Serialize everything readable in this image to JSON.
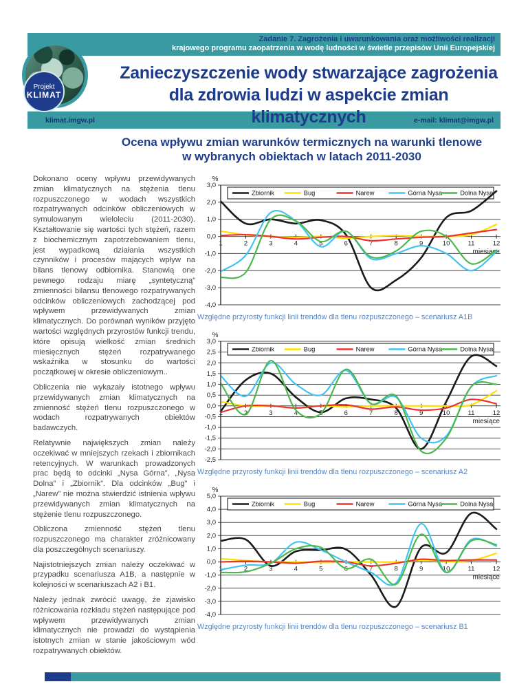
{
  "page": {
    "header": {
      "task_line1": "Zadanie 7. Zagrożenia i uwarunkowania oraz możliwości realizacji",
      "task_line2": "krajowego programu zaopatrzenia w wodę ludności w świetle przepisów Unii Europejskiej",
      "title_line1": "Zanieczyszczenie wody stwarzające zagrożenia",
      "title_line2": "dla zdrowia ludzi w aspekcie zmian klimatycznych",
      "website": "klimat.imgw.pl",
      "email": "e-mail: klimat@imgw.pl",
      "logo_line1": "Projekt",
      "logo_line2": "KLIMAT"
    },
    "section_title_line1": "Ocena wpływu zmian warunków termicznych na warunki tlenowe",
    "section_title_line2": "w wybranych obiektach w latach 2011-2030",
    "article": {
      "paragraphs": [
        "Dokonano oceny wpływu przewidywanych zmian klimatycznych na stężenia tlenu rozpuszczonego w wodach wszystkich rozpatrywanych odcinków obliczeniowych w symulowanym wieloleciu (2011-2030). Kształtowanie się wartości tych stężeń, razem z biochemicznym zapotrzebowaniem tlenu, jest wypadkową działania wszystkich czynników i procesów mających wpływ na bilans tlenowy odbiornika. Stanowią one pewnego rodzaju miarę „syntetyczną” zmienności bilansu tlenowego rozpatrywanych odcinków obliczeniowych zachodzącej pod wpływem przewidywanych zmian klimatycznych. Do porównań wyników przyjęto wartości względnych przyrostów funkcji trendu, które opisują wielkość zmian średnich miesięcznych stężeń rozpatrywanego wskaźnika w stosunku do wartości początkowej w okresie obliczeniowym..",
        "Obliczenia nie wykazały istotnego wpływu przewidywanych zmian klimatycznych na zmienność stężeń tlenu rozpuszczonego w wodach rozpatrywanych obiektów badawczych.",
        "Relatywnie największych zmian należy oczekiwać w mniejszych rzekach i zbiornikach retencyjnych. W warunkach prowadzonych prac będą to odcinki „Nysa Górna”, „Nysa Dolna” i „Zbiornik”. Dla odcinków „Bug” i „Narew” nie można stwierdzić istnienia wpływu przewidywanych zmian klimatycznych na stężenie tlenu rozpuszczonego.",
        "Obliczona zmienność stężeń tlenu rozpuszczonego ma charakter zróżnicowany dla poszczególnych scenariuszy.",
        "Najistotniejszych zmian należy oczekiwać w przypadku scenariusza A1B, a następnie w kolejności w scenariuszach A2 i B1.",
        "Należy jednak zwrócić uwagę, że zjawisko różnicowania rozkładu stężeń następujące pod wpływem przewidywanych zmian klimatycznych nie prowadzi do wystąpienia istotnych zmian w stanie jakościowym wód rozpatrywanych obiektów."
      ]
    },
    "colors": {
      "teal": "#3a9aa1",
      "navy": "#1e3c8c",
      "caption_blue": "#5585c5"
    }
  },
  "chart_data": [
    {
      "type": "line",
      "caption": "Względne przyrosty funkcji linii trendów dla tlenu rozpuszczonego – scenariusz A1B",
      "ylabel": "%",
      "xlabel": "miesiące",
      "x": [
        1,
        2,
        3,
        4,
        5,
        6,
        7,
        8,
        9,
        10,
        11,
        12
      ],
      "ylim": [
        -4,
        3
      ],
      "ystep": 1,
      "grid": true,
      "legend_position": "top",
      "series": [
        {
          "name": "Zbiornik",
          "color": "#1a1a1a",
          "width": 2.6,
          "values": [
            2.05,
            0.75,
            1.0,
            0.75,
            0.95,
            0.1,
            -3.0,
            -2.55,
            -1.25,
            1.1,
            1.5,
            2.65
          ]
        },
        {
          "name": "Bug",
          "color": "#ffe000",
          "width": 2.2,
          "values": [
            0.3,
            0.1,
            0.0,
            -0.05,
            0.0,
            -0.1,
            0.0,
            0.05,
            0.0,
            0.0,
            0.1,
            0.7
          ]
        },
        {
          "name": "Narew",
          "color": "#e8352b",
          "width": 2.2,
          "values": [
            0.05,
            0.1,
            0.0,
            -0.15,
            -0.05,
            0.0,
            -0.25,
            -0.15,
            -0.05,
            0.0,
            0.2,
            0.4
          ]
        },
        {
          "name": "Górna Nysa",
          "color": "#41c3f2",
          "width": 2.2,
          "values": [
            -2.05,
            -1.1,
            1.4,
            0.9,
            -0.6,
            0.3,
            -1.3,
            -1.0,
            -0.55,
            -1.0,
            -2.0,
            -0.9
          ]
        },
        {
          "name": "Dolna Nysa",
          "color": "#4cb84c",
          "width": 2.2,
          "values": [
            -2.4,
            -2.1,
            1.0,
            0.9,
            -0.3,
            0.3,
            -1.2,
            -0.85,
            0.3,
            0.0,
            -1.6,
            -0.8
          ]
        }
      ]
    },
    {
      "type": "line",
      "caption": "Względne przyrosty funkcji linii trendów dla tlenu rozpuszczonego – scenariusz A2",
      "ylabel": "%",
      "xlabel": "miesiące",
      "x": [
        1,
        2,
        3,
        4,
        5,
        6,
        7,
        8,
        9,
        10,
        11,
        12
      ],
      "ylim": [
        -2.5,
        3
      ],
      "ystep": 0.5,
      "grid": true,
      "legend_position": "top",
      "series": [
        {
          "name": "Zbiornik",
          "color": "#1a1a1a",
          "width": 2.6,
          "values": [
            -0.25,
            1.2,
            1.5,
            0.4,
            -0.3,
            0.35,
            0.3,
            -0.1,
            -2.0,
            0.2,
            2.3,
            1.85
          ]
        },
        {
          "name": "Bug",
          "color": "#ffe000",
          "width": 2.2,
          "values": [
            0.2,
            0.0,
            0.0,
            -0.1,
            0.0,
            -0.05,
            0.0,
            0.0,
            0.0,
            0.0,
            0.05,
            0.7
          ]
        },
        {
          "name": "Narew",
          "color": "#e8352b",
          "width": 2.2,
          "values": [
            -0.3,
            0.0,
            0.0,
            -0.1,
            0.0,
            0.05,
            -0.15,
            -0.05,
            -0.2,
            -0.1,
            0.3,
            0.1
          ]
        },
        {
          "name": "Górna Nysa",
          "color": "#41c3f2",
          "width": 2.2,
          "values": [
            1.4,
            0.45,
            2.0,
            1.0,
            0.5,
            1.65,
            0.1,
            0.4,
            -1.5,
            -1.4,
            0.9,
            1.4
          ]
        },
        {
          "name": "Dolna Nysa",
          "color": "#4cb84c",
          "width": 2.2,
          "values": [
            1.05,
            -0.4,
            2.1,
            -0.2,
            -0.35,
            1.7,
            0.1,
            0.45,
            -2.1,
            -1.5,
            0.9,
            1.0
          ]
        }
      ]
    },
    {
      "type": "line",
      "caption": "Względne przyrosty funkcji linii trendów dla tlenu rozpuszczonego – scenariusz B1",
      "ylabel": "%",
      "xlabel": "miesiące",
      "x": [
        1,
        2,
        3,
        4,
        5,
        6,
        7,
        8,
        9,
        10,
        11,
        12
      ],
      "ylim": [
        -4,
        5
      ],
      "ystep": 1,
      "grid": true,
      "legend_position": "top",
      "series": [
        {
          "name": "Zbiornik",
          "color": "#1a1a1a",
          "width": 2.6,
          "values": [
            1.6,
            1.7,
            -0.3,
            0.8,
            0.9,
            0.95,
            -1.0,
            -3.4,
            1.1,
            0.7,
            3.7,
            2.5
          ]
        },
        {
          "name": "Bug",
          "color": "#ffe000",
          "width": 2.2,
          "values": [
            0.25,
            0.1,
            0.0,
            0.0,
            -0.05,
            0.0,
            0.0,
            0.0,
            0.1,
            0.05,
            0.1,
            0.65
          ]
        },
        {
          "name": "Narew",
          "color": "#e8352b",
          "width": 2.2,
          "values": [
            0.0,
            0.05,
            0.0,
            -0.1,
            0.05,
            0.0,
            -0.3,
            -0.1,
            0.2,
            0.1,
            0.15,
            0.15
          ]
        },
        {
          "name": "Górna Nysa",
          "color": "#41c3f2",
          "width": 2.2,
          "values": [
            -0.6,
            -0.25,
            -0.1,
            1.5,
            0.9,
            0.0,
            -0.8,
            -1.6,
            2.9,
            -0.8,
            1.7,
            1.2
          ]
        },
        {
          "name": "Dolna Nysa",
          "color": "#4cb84c",
          "width": 2.2,
          "values": [
            -0.8,
            -0.75,
            -0.1,
            1.0,
            1.1,
            -0.5,
            0.2,
            -1.7,
            2.1,
            -0.8,
            1.6,
            1.3
          ]
        }
      ]
    }
  ]
}
